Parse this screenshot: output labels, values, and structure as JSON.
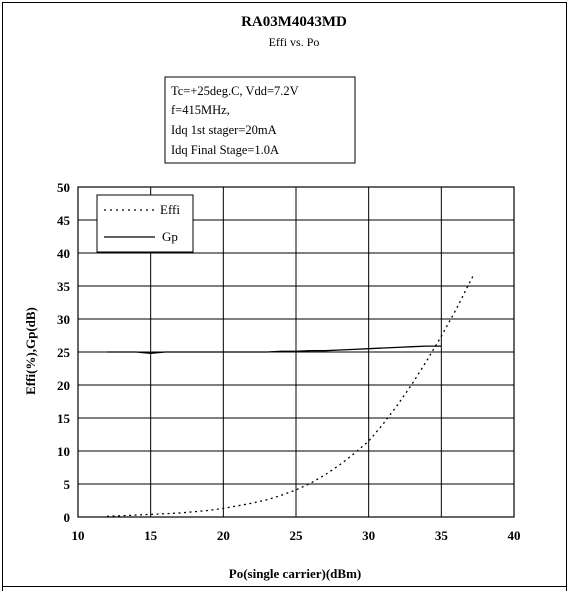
{
  "chart_data": {
    "type": "line",
    "title": "RA03M4043MD",
    "subtitle": "Effi vs. Po",
    "conditions": [
      "Tc=+25deg.C, Vdd=7.2V",
      "f=415MHz,",
      "Idq 1st stager=20mA",
      "Idq Final Stage=1.0A"
    ],
    "xlabel": "Po(single carrier)(dBm)",
    "ylabel": "Effi(%),Gp(dB)",
    "xlim": [
      10,
      40
    ],
    "ylim": [
      0,
      50
    ],
    "xticks": [
      "10",
      "15",
      "20",
      "25",
      "30",
      "35",
      "40"
    ],
    "yticks": [
      "0",
      "5",
      "10",
      "15",
      "20",
      "25",
      "30",
      "35",
      "40",
      "45",
      "50"
    ],
    "grid": true,
    "legend_position": "top-left",
    "series": [
      {
        "name": "Effi",
        "style": "dotted",
        "color": "#000000",
        "points": [
          [
            12,
            0.1
          ],
          [
            13,
            0.2
          ],
          [
            14,
            0.3
          ],
          [
            15,
            0.4
          ],
          [
            16,
            0.5
          ],
          [
            17,
            0.6
          ],
          [
            18,
            0.8
          ],
          [
            19,
            1.0
          ],
          [
            20,
            1.3
          ],
          [
            21,
            1.7
          ],
          [
            22,
            2.1
          ],
          [
            23,
            2.6
          ],
          [
            24,
            3.3
          ],
          [
            25,
            4.1
          ],
          [
            26,
            5.1
          ],
          [
            27,
            6.4
          ],
          [
            28,
            7.9
          ],
          [
            29,
            9.6
          ],
          [
            30,
            11.5
          ],
          [
            31,
            14.1
          ],
          [
            32,
            17.0
          ],
          [
            33,
            20.2
          ],
          [
            34,
            23.7
          ],
          [
            35,
            27.4
          ],
          [
            36,
            31.4
          ],
          [
            37.2,
            36.6
          ]
        ]
      },
      {
        "name": "Gp",
        "style": "solid",
        "color": "#000000",
        "points": [
          [
            12,
            25.0
          ],
          [
            13,
            25.0
          ],
          [
            14,
            25.0
          ],
          [
            15,
            24.8
          ],
          [
            16,
            25.0
          ],
          [
            17,
            25.0
          ],
          [
            18,
            25.0
          ],
          [
            19,
            25.0
          ],
          [
            20,
            25.0
          ],
          [
            21,
            25.0
          ],
          [
            22,
            25.0
          ],
          [
            23,
            25.0
          ],
          [
            24,
            25.1
          ],
          [
            25,
            25.1
          ],
          [
            26,
            25.2
          ],
          [
            27,
            25.2
          ],
          [
            28,
            25.3
          ],
          [
            29,
            25.4
          ],
          [
            30,
            25.5
          ],
          [
            31,
            25.6
          ],
          [
            32,
            25.7
          ],
          [
            33,
            25.8
          ],
          [
            34,
            25.9
          ],
          [
            35,
            25.9
          ]
        ]
      }
    ]
  }
}
